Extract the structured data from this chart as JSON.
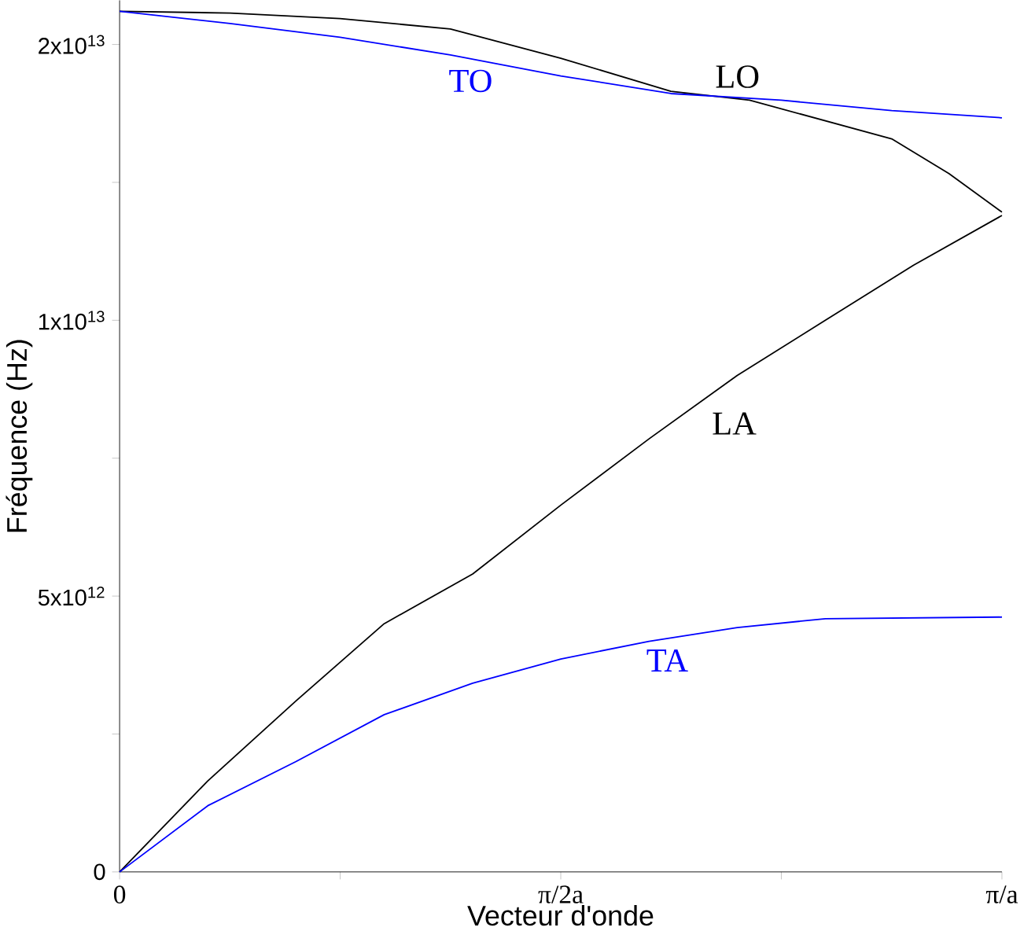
{
  "chart_data": {
    "type": "line",
    "xlabel": "Vecteur d'onde",
    "ylabel": "Fréquence (Hz)",
    "xlim": [
      0,
      3.1416
    ],
    "ylim": [
      0,
      15800000000000.0
    ],
    "xticks": [
      {
        "value": 0,
        "label": "0"
      },
      {
        "value": 0.7854,
        "label": null
      },
      {
        "value": 1.5708,
        "label": "π/2a"
      },
      {
        "value": 2.3562,
        "label": null
      },
      {
        "value": 3.1416,
        "label": "π/a"
      }
    ],
    "yticks": [
      {
        "value": 0,
        "label": "0"
      },
      {
        "value": 2500000000000.0,
        "label": null
      },
      {
        "value": 5000000000000.0,
        "label": "5x10$^{12}$"
      },
      {
        "value": 7500000000000.0,
        "label": null
      },
      {
        "value": 10000000000000.0,
        "label": "1x10$^{13}$"
      },
      {
        "value": 12500000000000.0,
        "label": null
      },
      {
        "value": 15000000000000.0,
        "label": "2x10$^{13}$"
      }
    ],
    "grid": false,
    "marker": "none",
    "line_style": "solid",
    "series": [
      {
        "name": "LO",
        "color": "#000000",
        "x": [
          0,
          0.393,
          0.785,
          1.178,
          1.571,
          1.963,
          2.243,
          2.749,
          2.953,
          3.1416
        ],
        "values": [
          15600000000000.0,
          15570000000000.0,
          15470000000000.0,
          15280000000000.0,
          14750000000000.0,
          14150000000000.0,
          13990000000000.0,
          13290000000000.0,
          12660000000000.0,
          11960000000000.0
        ]
      },
      {
        "name": "TO",
        "color": "#0000ff",
        "x": [
          0,
          0.393,
          0.785,
          1.178,
          1.571,
          1.963,
          2.356,
          2.749,
          3.1416
        ],
        "values": [
          15600000000000.0,
          15380000000000.0,
          15130000000000.0,
          14810000000000.0,
          14430000000000.0,
          14110000000000.0,
          13990000000000.0,
          13800000000000.0,
          13670000000000.0
        ]
      },
      {
        "name": "LA",
        "color": "#000000",
        "x": [
          0,
          0.314,
          0.628,
          0.942,
          1.257,
          1.571,
          1.885,
          2.199,
          2.513,
          2.827,
          3.1416
        ],
        "values": [
          0,
          1650000000000.0,
          3100000000000.0,
          4500000000000.0,
          5400000000000.0,
          6650000000000.0,
          7850000000000.0,
          9000000000000.0,
          10000000000000.0,
          11000000000000.0,
          11900000000000.0
        ]
      },
      {
        "name": "TA",
        "color": "#0000ff",
        "x": [
          0,
          0.314,
          0.628,
          0.942,
          1.257,
          1.571,
          1.885,
          2.199,
          2.513,
          3.1416
        ],
        "values": [
          0,
          1200000000000.0,
          2000000000000.0,
          2850000000000.0,
          3420000000000.0,
          3860000000000.0,
          4180000000000.0,
          4430000000000.0,
          4590000000000.0,
          4620000000000.0
        ]
      }
    ]
  }
}
